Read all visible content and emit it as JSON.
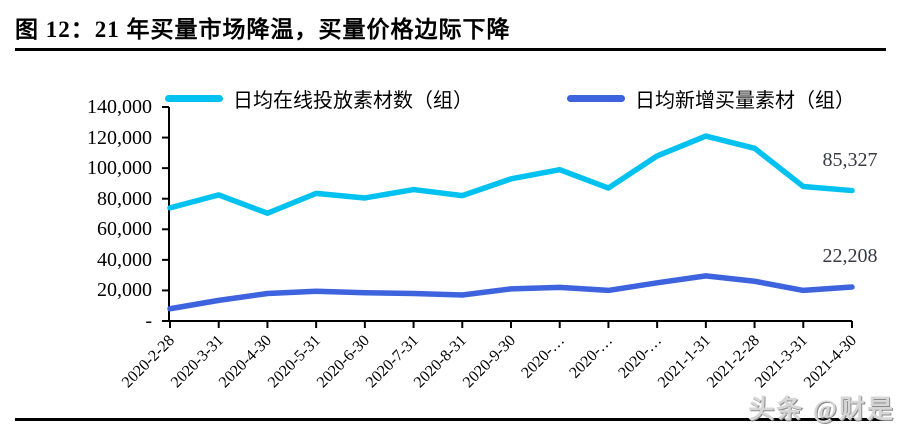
{
  "figure": {
    "title": "图 12：21 年买量市场降温，买量价格边际下降"
  },
  "watermark": {
    "text": "头条 @财是"
  },
  "chart_data": {
    "type": "line",
    "title": "21 年买量市场降温，买量价格边际下降",
    "xlabel": "",
    "ylabel": "",
    "grid": false,
    "legend_position": "top",
    "ylim": [
      0,
      140000
    ],
    "categories": [
      "2020-2-28",
      "2020-3-31",
      "2020-4-30",
      "2020-5-31",
      "2020-6-30",
      "2020-7-31",
      "2020-8-31",
      "2020-9-30",
      "2020-…",
      "2020-…",
      "2020-…",
      "2021-1-31",
      "2021-2-28",
      "2021-3-31",
      "2021-4-30"
    ],
    "series": [
      {
        "name": "日均在线投放素材数（组）",
        "color": "#00C1F0",
        "values": [
          74000,
          82500,
          70500,
          83500,
          80500,
          86000,
          82000,
          93000,
          99000,
          87000,
          108000,
          121000,
          113000,
          88000,
          85327
        ],
        "end_label": "85,327"
      },
      {
        "name": "日均新增买量素材（组）",
        "color": "#3E63DE",
        "values": [
          8000,
          13500,
          18000,
          19500,
          18500,
          18000,
          17000,
          21000,
          22000,
          20000,
          25000,
          29500,
          26000,
          20000,
          22208
        ],
        "end_label": "22,208"
      }
    ],
    "y_axis": {
      "min": 0,
      "max": 140000,
      "ticks": [
        {
          "label": "140,000",
          "value": 140000
        },
        {
          "label": "120,000",
          "value": 120000
        },
        {
          "label": "100,000",
          "value": 100000
        },
        {
          "label": "80,000",
          "value": 80000
        },
        {
          "label": "60,000",
          "value": 60000
        },
        {
          "label": "40,000",
          "value": 40000
        },
        {
          "label": "20,000",
          "value": 20000
        },
        {
          "label": "-",
          "value": 0
        }
      ]
    }
  }
}
